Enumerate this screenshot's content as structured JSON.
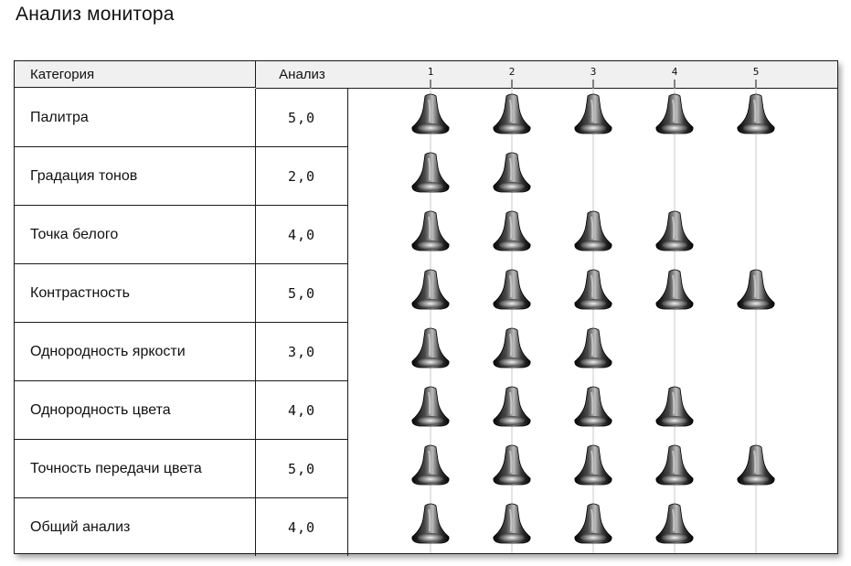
{
  "page": {
    "title": "Анализ монитора"
  },
  "table": {
    "header_category": "Категория",
    "header_score": "Анализ"
  },
  "chart_data": {
    "type": "bar",
    "orientation": "horizontal",
    "marker": "bell-icon",
    "scale_ticks": [
      "1",
      "2",
      "3",
      "4",
      "5"
    ],
    "xlim": [
      1,
      5
    ],
    "categories": [
      "Палитра",
      "Градация тонов",
      "Точка белого",
      "Контрастность",
      "Однородность яркости",
      "Однородность цвета",
      "Точность передачи цвета",
      "Общий анализ"
    ],
    "value_labels": [
      "5,0",
      "2,0",
      "4,0",
      "5,0",
      "3,0",
      "4,0",
      "5,0",
      "4,0"
    ],
    "values": [
      5,
      2,
      4,
      5,
      3,
      4,
      5,
      4
    ],
    "grid": true
  }
}
